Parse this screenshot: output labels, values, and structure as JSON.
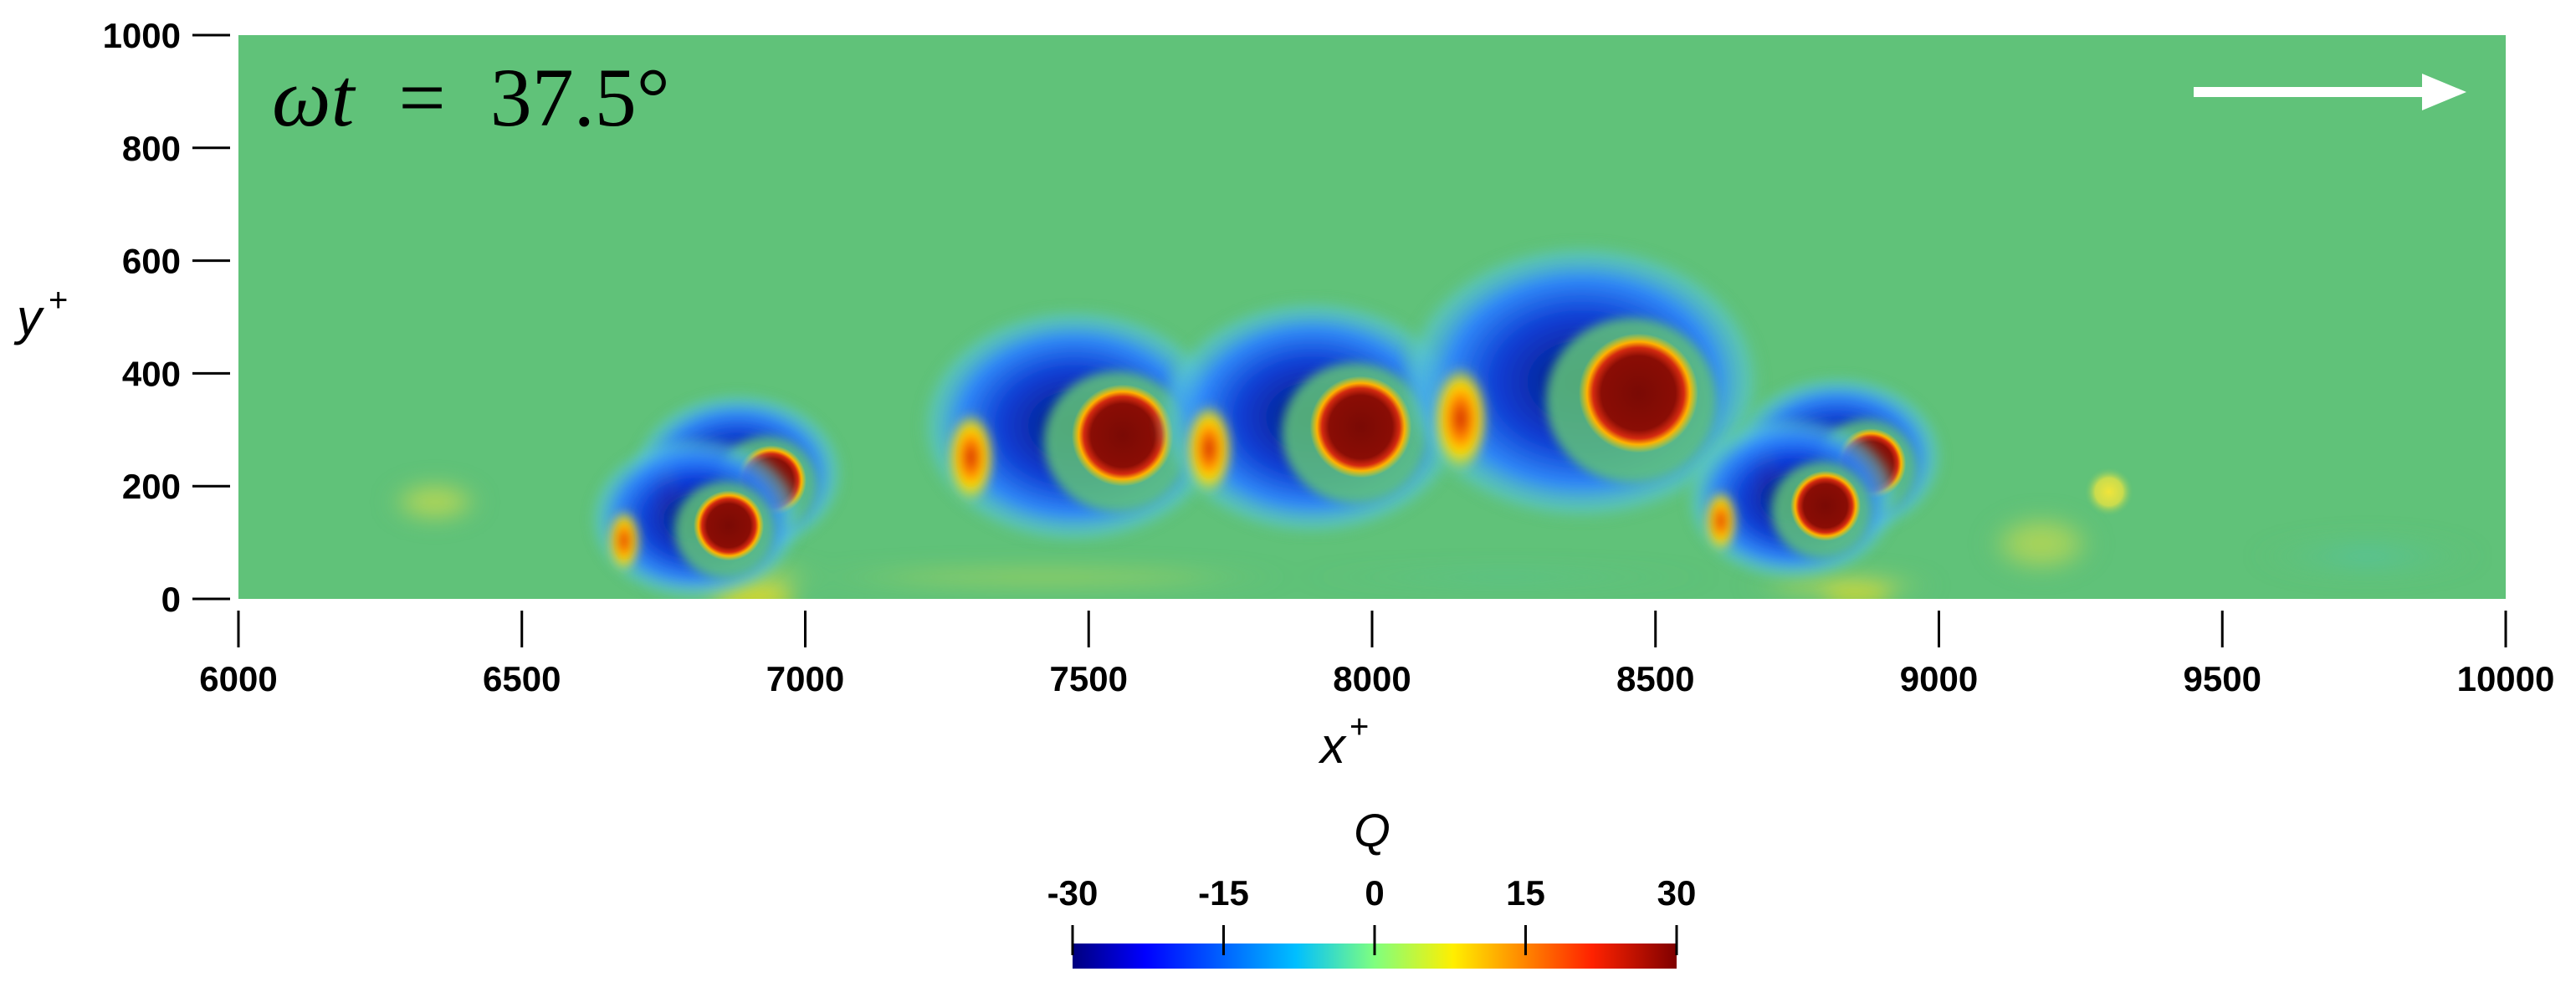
{
  "chart_data": {
    "type": "heatmap",
    "title": "",
    "xlabel": "x",
    "xlabel_sup": "+",
    "ylabel": "y",
    "ylabel_sup": "+",
    "xlim": [
      6000,
      10000
    ],
    "ylim": [
      0,
      1000
    ],
    "x_ticks": [
      "6000",
      "6500",
      "7000",
      "7500",
      "8000",
      "8500",
      "9000",
      "9500",
      "10000"
    ],
    "y_ticks": [
      "0",
      "200",
      "400",
      "600",
      "800",
      "1000"
    ],
    "x_tick_values": [
      6000,
      6500,
      7000,
      7500,
      8000,
      8500,
      9000,
      9500,
      10000
    ],
    "y_tick_values": [
      0,
      200,
      400,
      600,
      800,
      1000
    ],
    "annotation": {
      "symbol": "ωt",
      "equals": "=",
      "value": "37.5°"
    },
    "flow_direction_arrow": "right",
    "colorbar": {
      "label": "Q",
      "min": -30,
      "max": 30,
      "ticks": [
        "-30",
        "-15",
        "0",
        "15",
        "30"
      ],
      "tick_values": [
        -30,
        -15,
        0,
        15,
        30
      ],
      "colormap": "jet",
      "stops": [
        "#00007f",
        "#0000ff",
        "#00bfff",
        "#7fff7f",
        "#ffef00",
        "#ff5a00",
        "#7f0000"
      ]
    },
    "background_value": 0,
    "background_color": "#60c279",
    "vortices": [
      {
        "x": 6940,
        "y": 210,
        "q_core": 30,
        "q_ring": -30,
        "size": "small"
      },
      {
        "x": 6865,
        "y": 130,
        "q_core": 30,
        "q_ring": -30,
        "size": "small"
      },
      {
        "x": 7560,
        "y": 290,
        "q_core": 30,
        "q_ring": -30,
        "size": "medium"
      },
      {
        "x": 7980,
        "y": 305,
        "q_core": 30,
        "q_ring": -30,
        "size": "medium"
      },
      {
        "x": 8470,
        "y": 365,
        "q_core": 30,
        "q_ring": -30,
        "size": "large"
      },
      {
        "x": 8880,
        "y": 240,
        "q_core": 30,
        "q_ring": -30,
        "size": "small"
      },
      {
        "x": 8800,
        "y": 165,
        "q_core": 28,
        "q_ring": -25,
        "size": "small"
      },
      {
        "x": 9300,
        "y": 190,
        "q_core": 12,
        "q_ring": 0,
        "size": "small"
      }
    ]
  }
}
